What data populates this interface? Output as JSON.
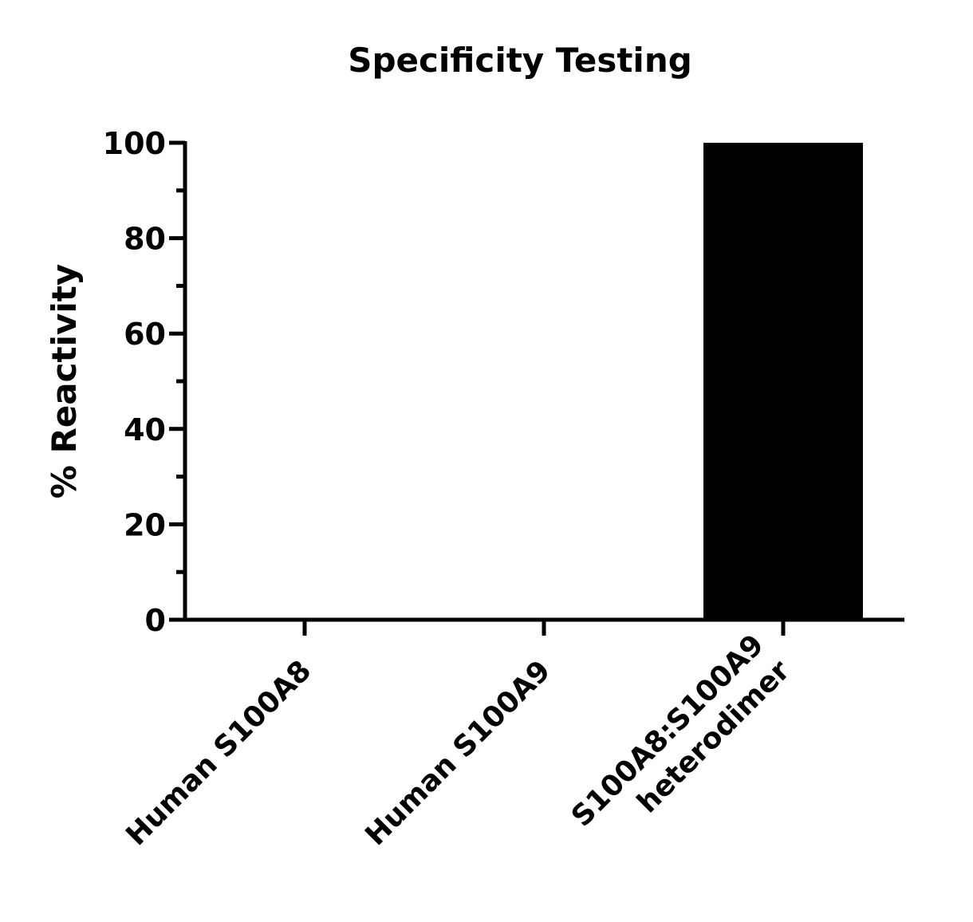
{
  "chart_data": {
    "type": "bar",
    "title": "Specificity Testing",
    "xlabel": "",
    "ylabel": "% Reactivity",
    "categories": [
      [
        "Human S100A8"
      ],
      [
        "Human S100A9"
      ],
      [
        "S100A8:S100A9",
        "heterodimer"
      ]
    ],
    "values": [
      0,
      0,
      100
    ],
    "ylim": [
      0,
      100
    ],
    "yticks": [
      0,
      20,
      40,
      60,
      80,
      100
    ],
    "bar_color": "#000000",
    "grid": false,
    "legend": "none"
  }
}
